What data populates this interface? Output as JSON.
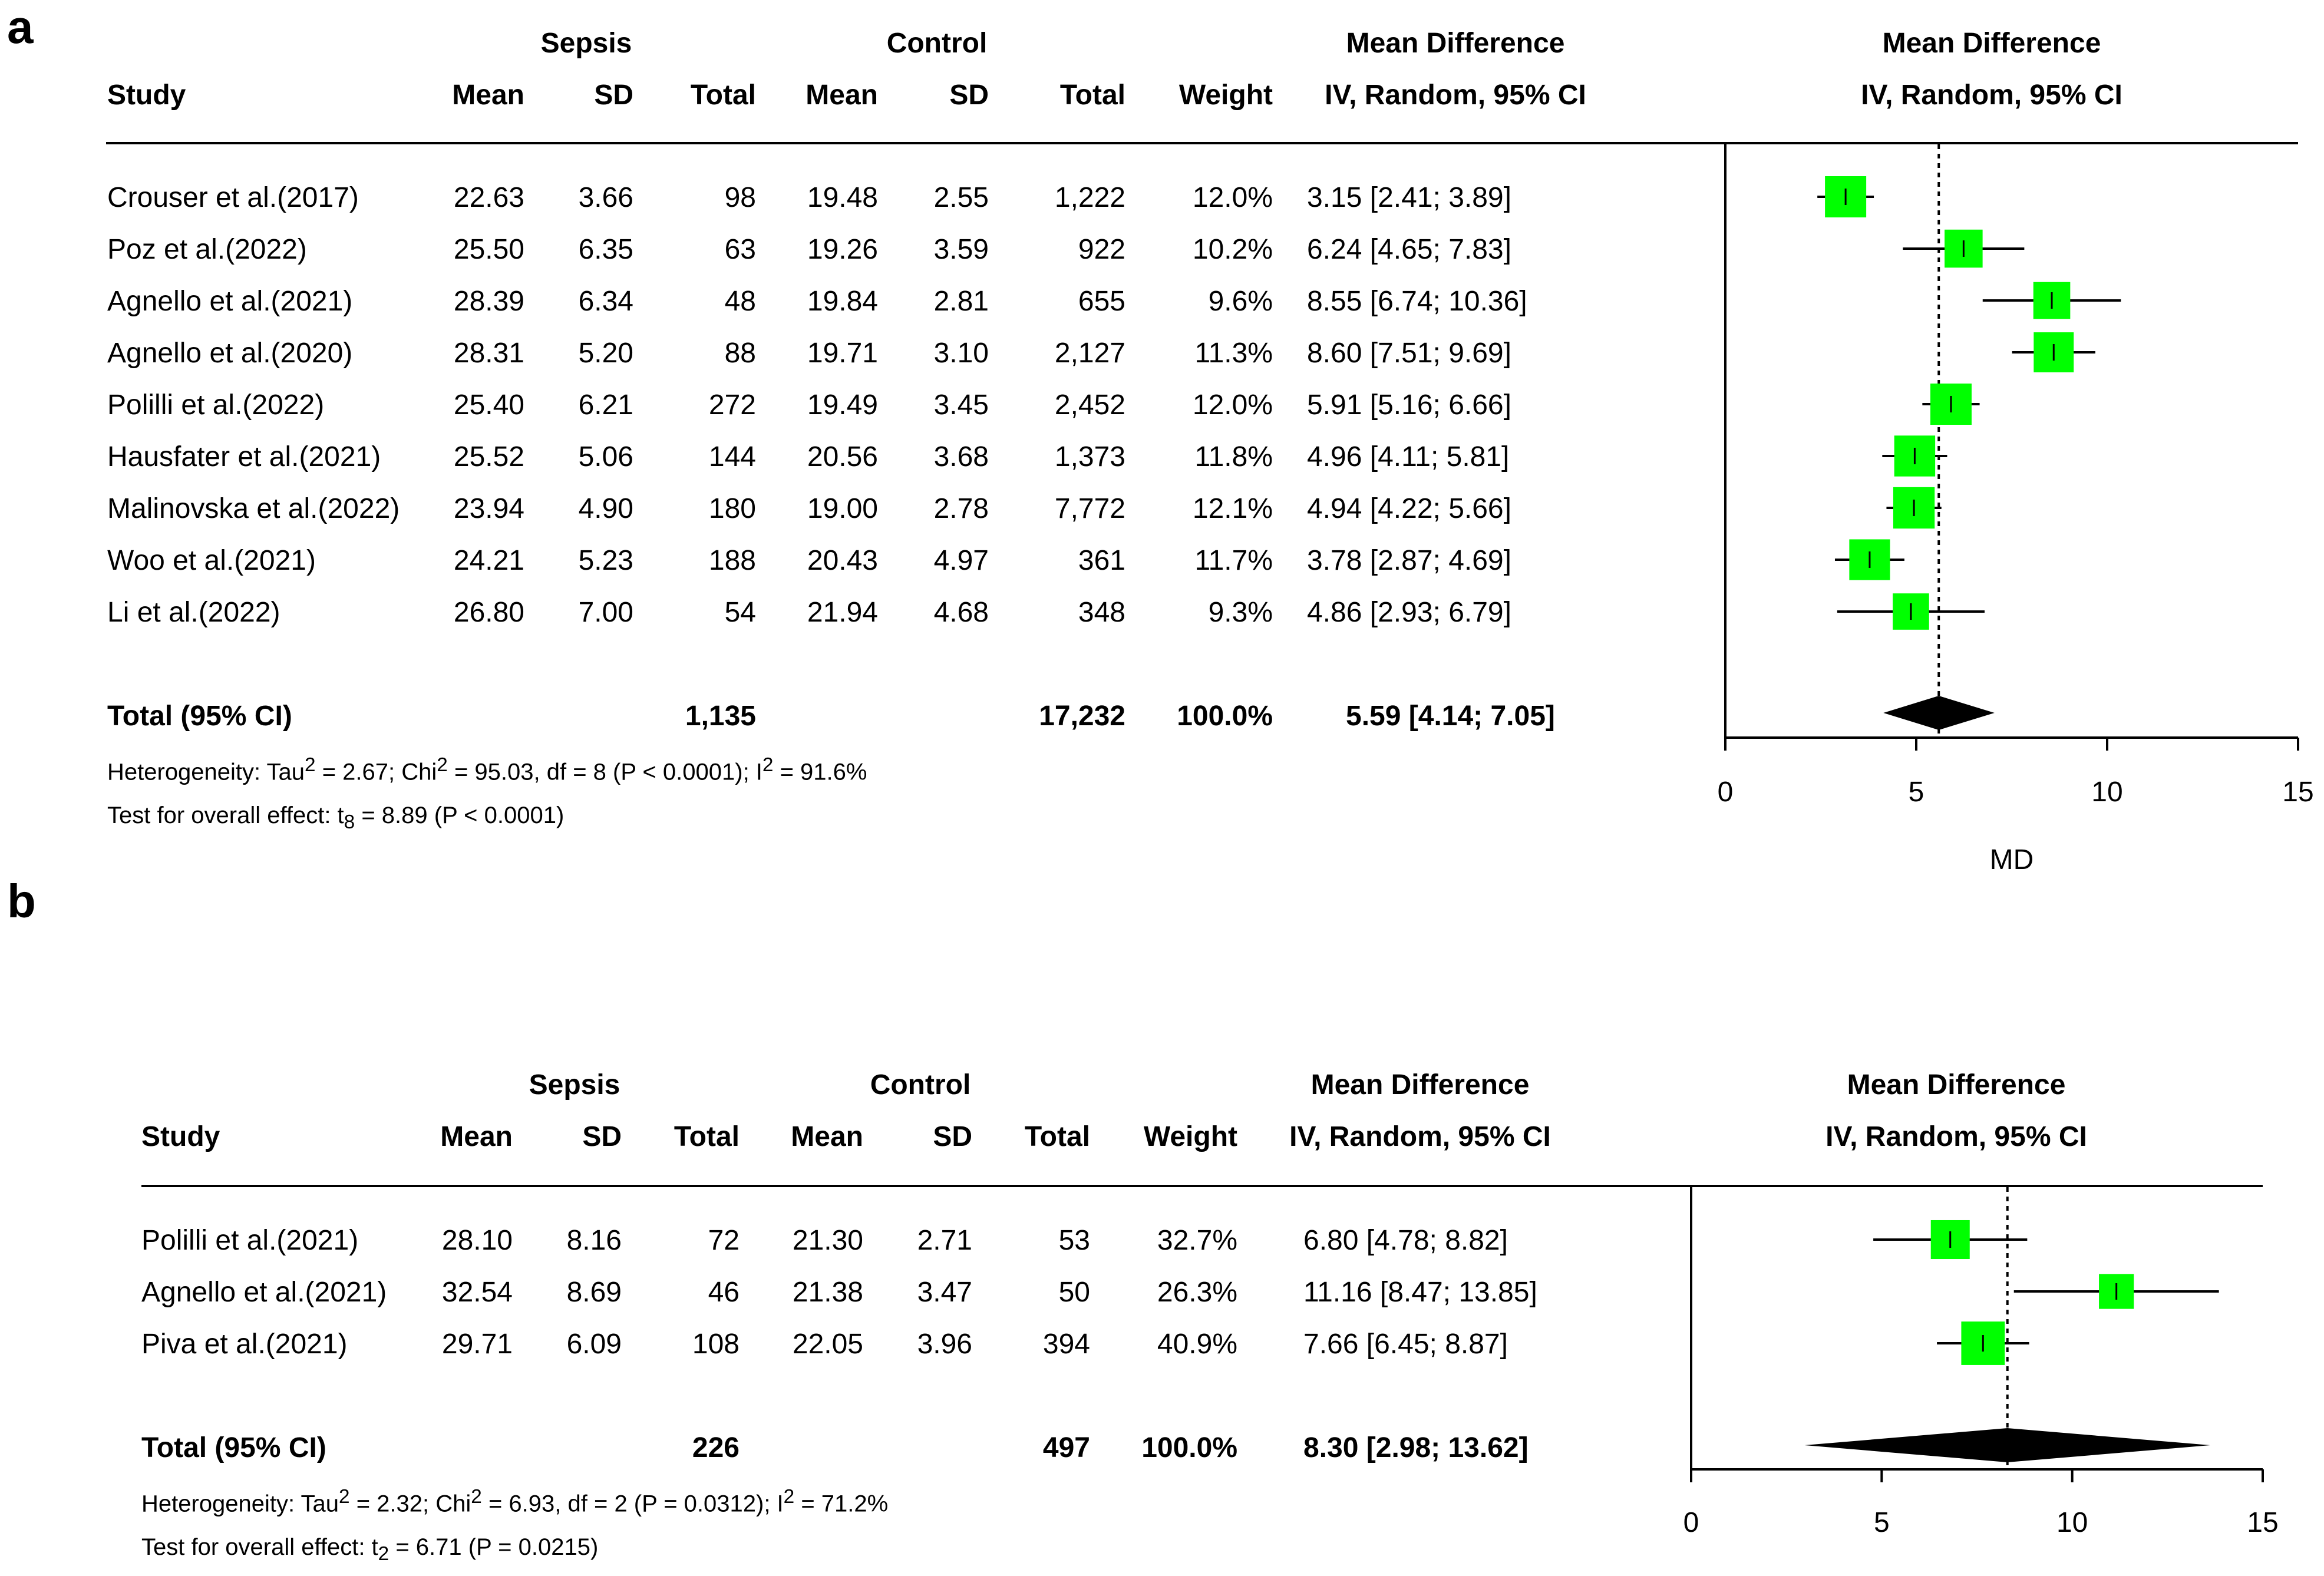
{
  "chart_data": [
    {
      "type": "forest",
      "panel_label": "a",
      "header": {
        "group1": "Sepsis",
        "group2": "Control",
        "study": "Study",
        "mean": "Mean",
        "sd": "SD",
        "total": "Total",
        "weight": "Weight",
        "md_title": "Mean Difference",
        "md_method": "IV, Random, 95% CI"
      },
      "studies": [
        {
          "study": "Crouser et al.(2017)",
          "m1": "22.63",
          "sd1": "3.66",
          "n1": "98",
          "m2": "19.48",
          "sd2": "2.55",
          "n2": "1,222",
          "weight": "12.0%",
          "ci_text": "3.15 [2.41;  3.89]",
          "md": 3.15,
          "lo": 2.41,
          "hi": 3.89,
          "w": 12.0
        },
        {
          "study": "Poz et al.(2022)",
          "m1": "25.50",
          "sd1": "6.35",
          "n1": "63",
          "m2": "19.26",
          "sd2": "3.59",
          "n2": "922",
          "weight": "10.2%",
          "ci_text": "6.24 [4.65;  7.83]",
          "md": 6.24,
          "lo": 4.65,
          "hi": 7.83,
          "w": 10.2
        },
        {
          "study": "Agnello et al.(2021)",
          "m1": "28.39",
          "sd1": "6.34",
          "n1": "48",
          "m2": "19.84",
          "sd2": "2.81",
          "n2": "655",
          "weight": "9.6%",
          "ci_text": "8.55 [6.74; 10.36]",
          "md": 8.55,
          "lo": 6.74,
          "hi": 10.36,
          "w": 9.6
        },
        {
          "study": "Agnello et al.(2020)",
          "m1": "28.31",
          "sd1": "5.20",
          "n1": "88",
          "m2": "19.71",
          "sd2": "3.10",
          "n2": "2,127",
          "weight": "11.3%",
          "ci_text": "8.60 [7.51;  9.69]",
          "md": 8.6,
          "lo": 7.51,
          "hi": 9.69,
          "w": 11.3
        },
        {
          "study": "Polilli et al.(2022)",
          "m1": "25.40",
          "sd1": "6.21",
          "n1": "272",
          "m2": "19.49",
          "sd2": "3.45",
          "n2": "2,452",
          "weight": "12.0%",
          "ci_text": "5.91 [5.16;  6.66]",
          "md": 5.91,
          "lo": 5.16,
          "hi": 6.66,
          "w": 12.0
        },
        {
          "study": "Hausfater et al.(2021)",
          "m1": "25.52",
          "sd1": "5.06",
          "n1": "144",
          "m2": "20.56",
          "sd2": "3.68",
          "n2": "1,373",
          "weight": "11.8%",
          "ci_text": "4.96 [4.11;  5.81]",
          "md": 4.96,
          "lo": 4.11,
          "hi": 5.81,
          "w": 11.8
        },
        {
          "study": "Malinovska et al.(2022)",
          "m1": "23.94",
          "sd1": "4.90",
          "n1": "180",
          "m2": "19.00",
          "sd2": "2.78",
          "n2": "7,772",
          "weight": "12.1%",
          "ci_text": "4.94 [4.22;  5.66]",
          "md": 4.94,
          "lo": 4.22,
          "hi": 5.66,
          "w": 12.1
        },
        {
          "study": "Woo et al.(2021)",
          "m1": "24.21",
          "sd1": "5.23",
          "n1": "188",
          "m2": "20.43",
          "sd2": "4.97",
          "n2": "361",
          "weight": "11.7%",
          "ci_text": "3.78 [2.87;  4.69]",
          "md": 3.78,
          "lo": 2.87,
          "hi": 4.69,
          "w": 11.7
        },
        {
          "study": "Li et al.(2022)",
          "m1": "26.80",
          "sd1": "7.00",
          "n1": "54",
          "m2": "21.94",
          "sd2": "4.68",
          "n2": "348",
          "weight": "9.3%",
          "ci_text": "4.86 [2.93;  6.79]",
          "md": 4.86,
          "lo": 2.93,
          "hi": 6.79,
          "w": 9.3
        }
      ],
      "total": {
        "label": "Total (95% CI)",
        "n1": "1,135",
        "n2": "17,232",
        "weight": "100.0%",
        "ci_text": "5.59 [4.14;  7.05]",
        "md": 5.59,
        "lo": 4.14,
        "hi": 7.05
      },
      "heterogeneity": {
        "prefix": "Heterogeneity: Tau",
        "tau2": " = 2.67; Chi",
        "chi2": " = 95.03, df = 8 (P < 0.0001); I",
        "i2": " = 91.6%"
      },
      "overall_effect": {
        "prefix": "Test for overall effect: t",
        "sub": "8",
        "rest": " = 8.89 (P < 0.0001)"
      },
      "axis": {
        "min": 0,
        "max": 15,
        "ticks": [
          "0",
          "5",
          "10",
          "15"
        ],
        "xlabel": "MD"
      },
      "colors": {
        "box": "#00ff00",
        "line": "#000000",
        "diamond": "#000000"
      }
    },
    {
      "type": "forest",
      "panel_label": "b",
      "header": {
        "group1": "Sepsis",
        "group2": "Control",
        "study": "Study",
        "mean": "Mean",
        "sd": "SD",
        "total": "Total",
        "weight": "Weight",
        "md_title": "Mean Difference",
        "md_method": "IV, Random, 95% CI"
      },
      "studies": [
        {
          "study": "Polilli et al.(2021)",
          "m1": "28.10",
          "sd1": "8.16",
          "n1": "72",
          "m2": "21.30",
          "sd2": "2.71",
          "n2": "53",
          "weight": "32.7%",
          "ci_text": "6.80 [4.78;  8.82]",
          "md": 6.8,
          "lo": 4.78,
          "hi": 8.82,
          "w": 32.7
        },
        {
          "study": "Agnello et al.(2021)",
          "m1": "32.54",
          "sd1": "8.69",
          "n1": "46",
          "m2": "21.38",
          "sd2": "3.47",
          "n2": "50",
          "weight": "26.3%",
          "ci_text": "11.16 [8.47; 13.85]",
          "md": 11.16,
          "lo": 8.47,
          "hi": 13.85,
          "w": 26.3
        },
        {
          "study": "Piva et al.(2021)",
          "m1": "29.71",
          "sd1": "6.09",
          "n1": "108",
          "m2": "22.05",
          "sd2": "3.96",
          "n2": "394",
          "weight": "40.9%",
          "ci_text": "7.66 [6.45;  8.87]",
          "md": 7.66,
          "lo": 6.45,
          "hi": 8.87,
          "w": 40.9
        }
      ],
      "total": {
        "label": "Total (95% CI)",
        "n1": "226",
        "n2": "497",
        "weight": "100.0%",
        "ci_text": "8.30 [2.98; 13.62]",
        "md": 8.3,
        "lo": 2.98,
        "hi": 13.62
      },
      "heterogeneity": {
        "prefix": "Heterogeneity: Tau",
        "tau2": " = 2.32; Chi",
        "chi2": " = 6.93, df = 2 (P = 0.0312); I",
        "i2": " = 71.2%"
      },
      "overall_effect": {
        "prefix": "Test for overall effect: t",
        "sub": "2",
        "rest": " = 6.71 (P = 0.0215)"
      },
      "axis": {
        "min": 0,
        "max": 15,
        "ticks": [
          "0",
          "5",
          "10",
          "15"
        ],
        "xlabel": ""
      },
      "colors": {
        "box": "#00ff00",
        "line": "#000000",
        "diamond": "#000000"
      }
    }
  ]
}
